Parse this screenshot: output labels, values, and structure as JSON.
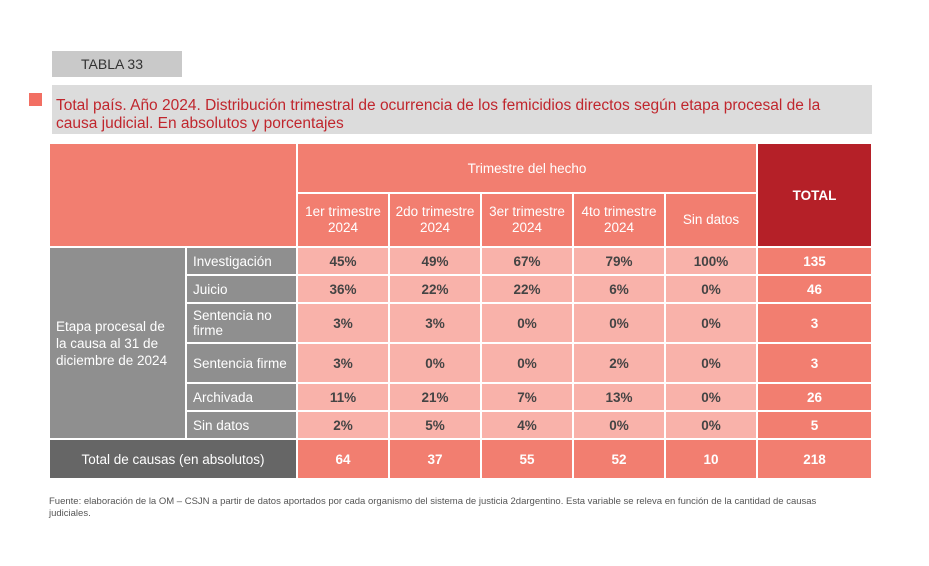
{
  "tag": "TABLA 33",
  "title": "Total país. Año 2024. Distribución trimestral de ocurrencia de los femicidios directos según etapa procesal de la causa judicial. En absolutos y porcentajes",
  "header": {
    "group": "Trimestre del hecho",
    "total": "TOTAL",
    "columns": [
      "1er trimestre 2024",
      "2do trimestre 2024",
      "3er trimestre 2024",
      "4to trimestre 2024",
      "Sin datos"
    ]
  },
  "row_group_label": "Etapa procesal de la causa al 31 de diciembre de 2024",
  "rows": [
    {
      "label": "Investigación",
      "values": [
        "45%",
        "49%",
        "67%",
        "79%",
        "100%"
      ],
      "total": "135"
    },
    {
      "label": "Juicio",
      "values": [
        "36%",
        "22%",
        "22%",
        "6%",
        "0%"
      ],
      "total": "46"
    },
    {
      "label": "Sentencia no firme",
      "values": [
        "3%",
        "3%",
        "0%",
        "0%",
        "0%"
      ],
      "total": "3"
    },
    {
      "label": "Sentencia firme",
      "values": [
        "3%",
        "0%",
        "0%",
        "2%",
        "0%"
      ],
      "total": "3"
    },
    {
      "label": "Archivada",
      "values": [
        "11%",
        "21%",
        "7%",
        "13%",
        "0%"
      ],
      "total": "26"
    },
    {
      "label": "Sin datos",
      "values": [
        "2%",
        "5%",
        "4%",
        "0%",
        "0%"
      ],
      "total": "5"
    }
  ],
  "footer": {
    "label": "Total de causas (en absolutos)",
    "values": [
      "64",
      "37",
      "55",
      "52",
      "10"
    ],
    "total": "218"
  },
  "footnote": "Fuente: elaboración de la OM – CSJN a partir de datos aportados por cada organismo del sistema de justicia 2dargentino.  Esta variable se releva en función de  la cantidad de causas judiciales.",
  "colors": {
    "accent": "#f27e70",
    "total_header": "#b52028",
    "title_text": "#c0262d",
    "cell": "#f9b2aa",
    "row_label": "#8f8f8f"
  }
}
